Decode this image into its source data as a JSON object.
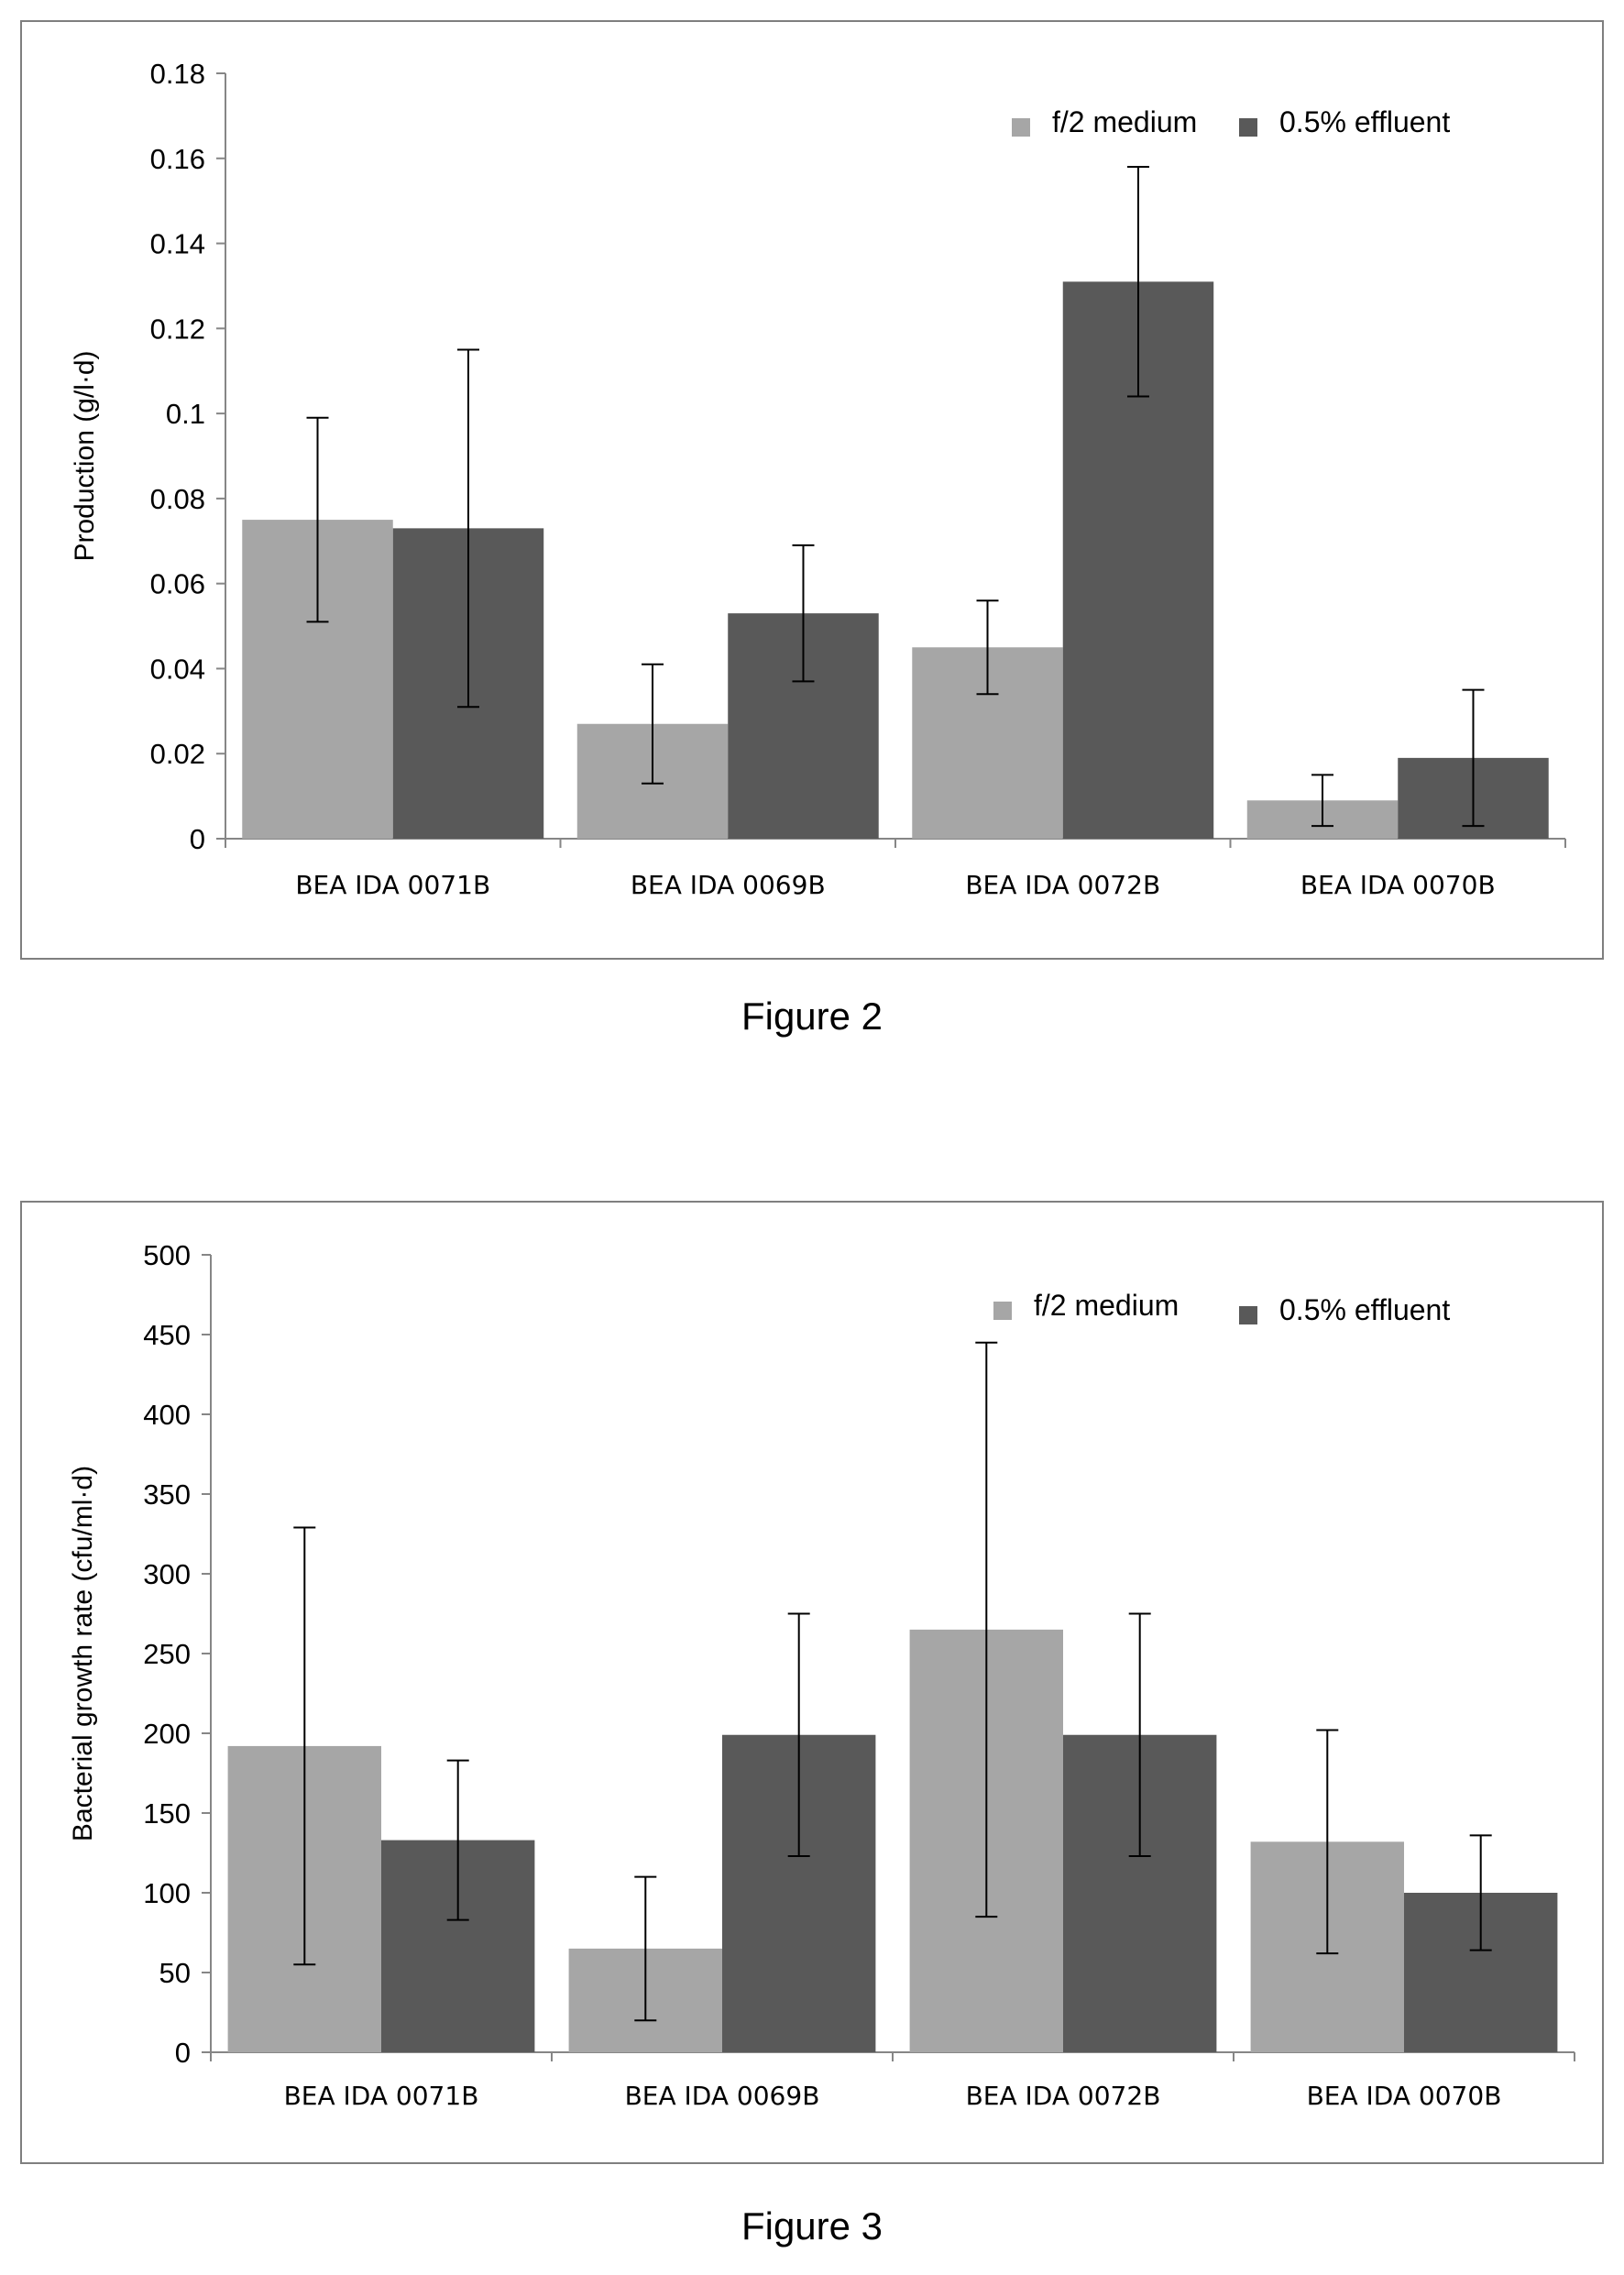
{
  "figures": [
    {
      "caption": "Figure 2"
    },
    {
      "caption": "Figure 3"
    }
  ],
  "colors": {
    "series1": "#a6a6a6",
    "series2": "#595959",
    "axis": "#868686",
    "frame": "#7f7f7f"
  },
  "chart_data": [
    {
      "type": "bar",
      "title": "",
      "xlabel": "",
      "ylabel": "Production (g/l·d)",
      "categories": [
        "BEA IDA 0071B",
        "BEA IDA 0069B",
        "BEA IDA 0072B",
        "BEA IDA 0070B"
      ],
      "series": [
        {
          "name": "f/2 medium",
          "values": [
            0.075,
            0.027,
            0.045,
            0.009
          ],
          "error": [
            0.024,
            0.014,
            0.011,
            0.006
          ]
        },
        {
          "name": "0.5% effluent",
          "values": [
            0.073,
            0.053,
            0.131,
            0.019
          ],
          "error": [
            0.042,
            0.016,
            0.027,
            0.016
          ]
        }
      ],
      "ylim": [
        0,
        0.18
      ],
      "yticks": [
        "0",
        "0.02",
        "0.04",
        "0.06",
        "0.08",
        "0.1",
        "0.12",
        "0.14",
        "0.16",
        "0.18"
      ],
      "grid": false,
      "legend": "top-right"
    },
    {
      "type": "bar",
      "title": "",
      "xlabel": "",
      "ylabel": "Bacterial growth rate (cfu/ml·d)",
      "categories": [
        "BEA IDA 0071B",
        "BEA IDA 0069B",
        "BEA IDA 0072B",
        "BEA IDA 0070B"
      ],
      "series": [
        {
          "name": "f/2 medium",
          "values": [
            192,
            65,
            265,
            132
          ],
          "error": [
            137,
            45,
            180,
            70
          ]
        },
        {
          "name": "0.5% effluent",
          "values": [
            133,
            199,
            199,
            100
          ],
          "error": [
            50,
            76,
            76,
            36
          ]
        }
      ],
      "ylim": [
        0,
        500
      ],
      "yticks": [
        "0",
        "50",
        "100",
        "150",
        "200",
        "250",
        "300",
        "350",
        "400",
        "450",
        "500"
      ],
      "grid": false,
      "legend": "top-right"
    }
  ]
}
